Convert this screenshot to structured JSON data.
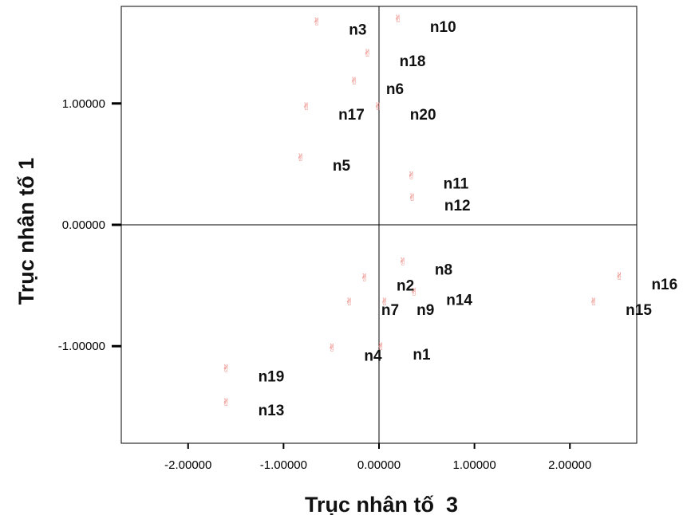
{
  "chart_data": {
    "type": "scatter",
    "xlabel": "Trục nhân tố  3",
    "ylabel": "Trục nhân tố 1",
    "xlim": [
      -2.7,
      2.7
    ],
    "ylim": [
      -1.8,
      1.8
    ],
    "x_ticks": [
      -2.0,
      -1.0,
      0.0,
      1.0,
      2.0
    ],
    "y_ticks": [
      -1.0,
      0.0,
      1.0
    ],
    "x_tick_labels": [
      "-2.00000",
      "-1.00000",
      "0.00000",
      "1.00000",
      "2.00000"
    ],
    "y_tick_labels": [
      "-1.00000",
      "0.00000",
      "1.00000"
    ],
    "marker_color": "#e8776f",
    "marker_glyph": "✌",
    "grid": false,
    "reference_lines": [
      0,
      0
    ],
    "points": [
      {
        "label": "n3",
        "x": -0.65,
        "y": 1.68
      },
      {
        "label": "n10",
        "x": 0.2,
        "y": 1.7
      },
      {
        "label": "n18",
        "x": -0.12,
        "y": 1.42
      },
      {
        "label": "n6",
        "x": -0.26,
        "y": 1.19
      },
      {
        "label": "n17",
        "x": -0.76,
        "y": 0.98
      },
      {
        "label": "n20",
        "x": -0.01,
        "y": 0.98
      },
      {
        "label": "n5",
        "x": -0.82,
        "y": 0.56
      },
      {
        "label": "n11",
        "x": 0.34,
        "y": 0.41
      },
      {
        "label": "n12",
        "x": 0.35,
        "y": 0.23
      },
      {
        "label": "n8",
        "x": 0.25,
        "y": -0.3
      },
      {
        "label": "n2",
        "x": -0.15,
        "y": -0.43
      },
      {
        "label": "n14",
        "x": 0.37,
        "y": -0.55
      },
      {
        "label": "n7",
        "x": -0.31,
        "y": -0.63
      },
      {
        "label": "n9",
        "x": 0.06,
        "y": -0.63
      },
      {
        "label": "n16",
        "x": 2.52,
        "y": -0.42
      },
      {
        "label": "n15",
        "x": 2.25,
        "y": -0.63
      },
      {
        "label": "n4",
        "x": -0.49,
        "y": -1.01
      },
      {
        "label": "n1",
        "x": 0.02,
        "y": -1.0
      },
      {
        "label": "n19",
        "x": -1.6,
        "y": -1.18
      },
      {
        "label": "n13",
        "x": -1.6,
        "y": -1.46
      }
    ]
  }
}
